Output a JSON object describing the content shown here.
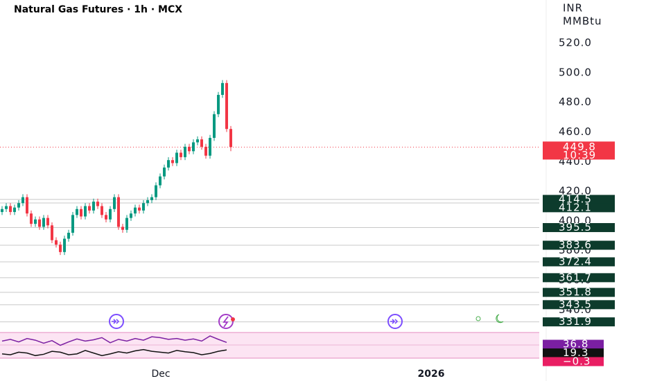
{
  "chart_data": {
    "type": "candlestick",
    "title": "Natural Gas Futures · 1h · MCX",
    "currency": "INR",
    "unit": "MMBtu",
    "x_labels": [
      "Dec",
      "2026"
    ],
    "up_color": "#089981",
    "down_color": "#f23645",
    "open": [
      406,
      408,
      410,
      406,
      409,
      412,
      416,
      405,
      398,
      401,
      396,
      402,
      397,
      387,
      384,
      379,
      388,
      392,
      404,
      408,
      403,
      410,
      407,
      413,
      410,
      404,
      401,
      408,
      416,
      396,
      394,
      402,
      405,
      409,
      407,
      412,
      414,
      416,
      424,
      430,
      436,
      441,
      439,
      446,
      443,
      450,
      447,
      453,
      455,
      450,
      444,
      456,
      472,
      485,
      493,
      462
    ],
    "high": [
      410,
      412,
      412,
      411,
      414,
      418,
      418,
      407,
      403,
      403,
      404,
      404,
      399,
      389,
      386,
      390,
      394,
      406,
      410,
      410,
      412,
      412,
      415,
      415,
      412,
      406,
      410,
      418,
      418,
      398,
      404,
      407,
      411,
      411,
      414,
      416,
      418,
      426,
      432,
      438,
      443,
      443,
      448,
      448,
      452,
      452,
      455,
      457,
      457,
      452,
      458,
      474,
      487,
      495,
      495,
      464
    ],
    "low": [
      404,
      406,
      404,
      404,
      407,
      410,
      403,
      396,
      396,
      394,
      394,
      395,
      385,
      382,
      377,
      377,
      386,
      390,
      402,
      401,
      401,
      405,
      405,
      408,
      402,
      399,
      399,
      406,
      394,
      392,
      392,
      400,
      403,
      405,
      405,
      410,
      412,
      414,
      422,
      428,
      434,
      437,
      437,
      441,
      441,
      445,
      445,
      451,
      448,
      442,
      442,
      454,
      470,
      483,
      460,
      447
    ],
    "close": [
      408,
      410,
      406,
      409,
      412,
      416,
      405,
      398,
      401,
      396,
      402,
      397,
      387,
      384,
      379,
      388,
      392,
      404,
      408,
      403,
      410,
      407,
      413,
      410,
      404,
      401,
      408,
      416,
      396,
      394,
      402,
      405,
      409,
      407,
      412,
      414,
      416,
      424,
      430,
      436,
      441,
      439,
      446,
      443,
      450,
      447,
      453,
      455,
      450,
      444,
      456,
      472,
      485,
      493,
      462,
      449.8
    ],
    "ylim": [
      329.4,
      549
    ],
    "yticks": [
      {
        "value": 520,
        "label": "520.0"
      },
      {
        "value": 500,
        "label": "500.0"
      },
      {
        "value": 480,
        "label": "480.0"
      },
      {
        "value": 460,
        "label": "460.0"
      },
      {
        "value": 440,
        "label": "440.0"
      },
      {
        "value": 420,
        "label": "420.0"
      },
      {
        "value": 400,
        "label": "400.0"
      },
      {
        "value": 380,
        "label": "380.0"
      },
      {
        "value": 360,
        "label": "360.0"
      },
      {
        "value": 340,
        "label": "340.0"
      }
    ],
    "levels": [
      414.5,
      412.1,
      395.5,
      383.6,
      372.4,
      361.7,
      351.8,
      343.5,
      331.9
    ],
    "level_color": "#0d3b2c",
    "last_price": 449.8,
    "countdown": "10:39",
    "indicator": {
      "ylim": [
        0,
        60
      ],
      "series": [
        {
          "color": "#7b1fa2",
          "values": [
            40,
            44,
            38,
            46,
            42,
            35,
            41,
            30,
            38,
            45,
            40,
            43,
            48,
            36,
            44,
            40,
            46,
            42,
            50,
            48,
            44,
            46,
            42,
            45,
            40,
            52,
            44,
            36.8
          ]
        },
        {
          "color": "#111111",
          "values": [
            10,
            8,
            14,
            12,
            6,
            9,
            16,
            14,
            8,
            10,
            18,
            12,
            6,
            10,
            15,
            12,
            17,
            20,
            16,
            14,
            12,
            18,
            15,
            13,
            8,
            11,
            16,
            19.3
          ]
        }
      ],
      "labels": [
        {
          "value": 36.8,
          "label": "36.8",
          "color": "#7b1fa2"
        },
        {
          "value": 19.3,
          "label": "19.3",
          "color": "#111111"
        },
        {
          "value": -0.3,
          "label": "−0.3",
          "color": "#e91e63"
        }
      ]
    }
  }
}
